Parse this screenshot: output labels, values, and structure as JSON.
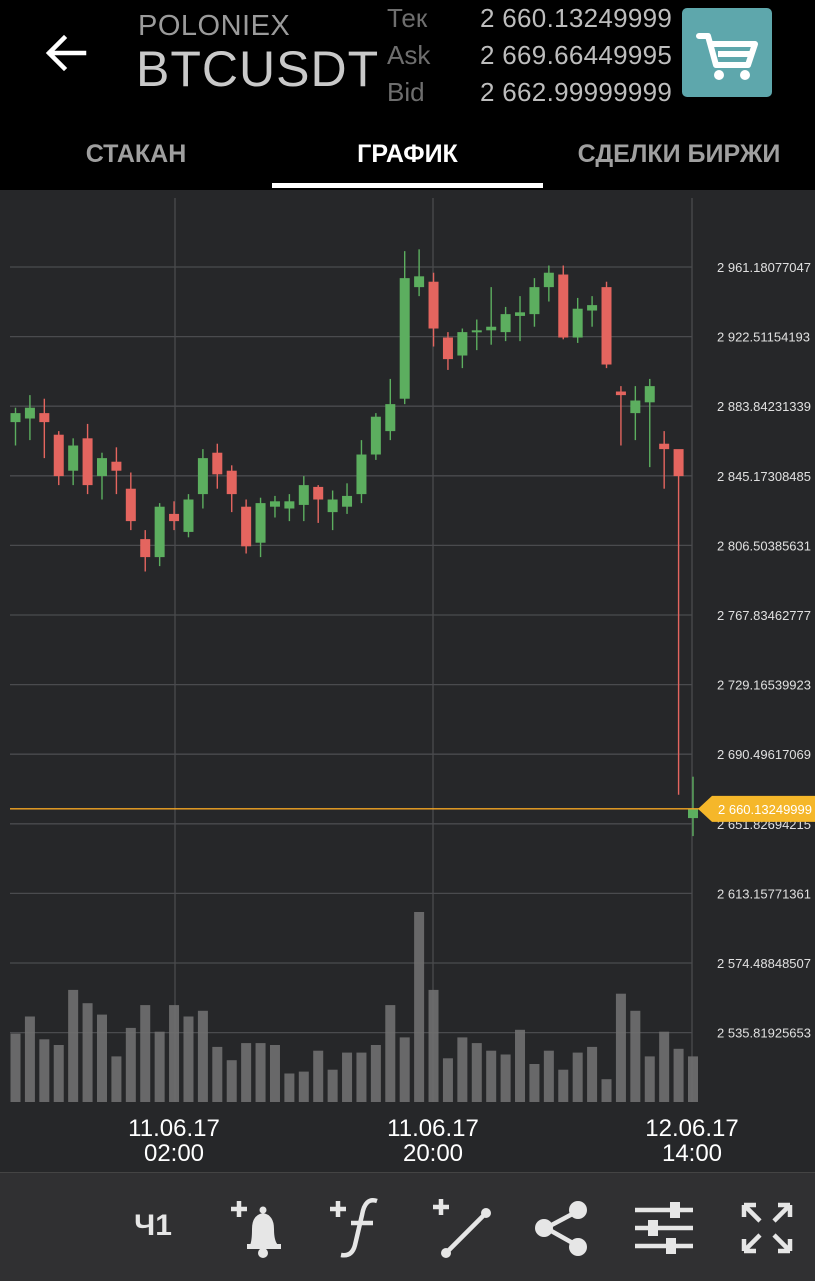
{
  "header": {
    "back_icon": "arrow-left-icon",
    "exchange": "POLONIEX",
    "pair": "BTCUSDT",
    "quotes": [
      {
        "label": "Тек",
        "value": "2 660.13249999"
      },
      {
        "label": "Ask",
        "value": "2 669.66449995"
      },
      {
        "label": "Bid",
        "value": "2 662.99999999"
      }
    ],
    "cart_icon": "shopping-cart-icon",
    "cart_color": "#5ea7ac"
  },
  "tabs": [
    {
      "label": "СТАКАН",
      "active": false
    },
    {
      "label": "ГРАФИК",
      "active": true
    },
    {
      "label": "СДЕЛКИ БИРЖИ",
      "active": false
    }
  ],
  "chart_data": {
    "type": "candlestick",
    "price_axis_ticks": [
      "2 961.18077047",
      "2 922.51154193",
      "2 883.84231339",
      "2 845.17308485",
      "2 806.50385631",
      "2 767.83462777",
      "2 729.16539923",
      "2 690.49617069",
      "2 651.82694215",
      "2 613.15771361",
      "2 574.48848507",
      "2 535.81925653"
    ],
    "current_price_label": "2 660.13249999",
    "current_price": 2660.13,
    "x_tick_labels": [
      [
        "11.06.17",
        "02:00"
      ],
      [
        "11.06.17",
        "20:00"
      ],
      [
        "12.06.17",
        "14:00"
      ]
    ],
    "colors": {
      "up": "#5cae5f",
      "down": "#e4655f",
      "current_line": "#f5a623",
      "volume": "#707070"
    },
    "candles": [
      [
        2875,
        2880,
        2866,
        2862,
        2883
      ],
      [
        2877,
        2883,
        2874,
        2865,
        2890
      ],
      [
        2880,
        2875,
        2872,
        2855,
        2888
      ],
      [
        2868,
        2845,
        2843,
        2840,
        2870
      ],
      [
        2848,
        2862,
        2845,
        2840,
        2866
      ],
      [
        2866,
        2840,
        2837,
        2835,
        2874
      ],
      [
        2845,
        2855,
        2842,
        2832,
        2858
      ],
      [
        2853,
        2848,
        2838,
        2835,
        2861
      ],
      [
        2838,
        2820,
        2817,
        2815,
        2847
      ],
      [
        2810,
        2800,
        2795,
        2792,
        2815
      ],
      [
        2800,
        2828,
        2798,
        2795,
        2830
      ],
      [
        2824,
        2820,
        2818,
        2815,
        2831
      ],
      [
        2814,
        2832,
        2811,
        2811,
        2835
      ],
      [
        2835,
        2855,
        2830,
        2827,
        2860
      ],
      [
        2858,
        2846,
        2841,
        2838,
        2863
      ],
      [
        2848,
        2835,
        2830,
        2825,
        2851
      ],
      [
        2828,
        2806,
        2804,
        2802,
        2832
      ],
      [
        2808,
        2830,
        2804,
        2800,
        2833
      ],
      [
        2828,
        2831,
        2824,
        2822,
        2834
      ],
      [
        2827,
        2831,
        2823,
        2820,
        2835
      ],
      [
        2829,
        2840,
        2824,
        2820,
        2845
      ],
      [
        2839,
        2832,
        2819,
        2819,
        2840
      ],
      [
        2825,
        2832,
        2822,
        2815,
        2837
      ],
      [
        2828,
        2834,
        2825,
        2824,
        2841
      ],
      [
        2835,
        2857,
        2830,
        2830,
        2865
      ],
      [
        2857,
        2878,
        2855,
        2854,
        2880
      ],
      [
        2870,
        2885,
        2868,
        2865,
        2899
      ],
      [
        2888,
        2955,
        2886,
        2885,
        2970
      ],
      [
        2950,
        2956,
        2948,
        2945,
        2971
      ],
      [
        2953,
        2927,
        2925,
        2917,
        2958
      ],
      [
        2922,
        2910,
        2906,
        2904,
        2925
      ],
      [
        2912,
        2925,
        2910,
        2905,
        2927
      ],
      [
        2925,
        2926,
        2919,
        2915,
        2932
      ],
      [
        2926,
        2928,
        2922,
        2918,
        2950
      ],
      [
        2925,
        2935,
        2920,
        2920,
        2939
      ],
      [
        2934,
        2936,
        2929,
        2920,
        2945
      ],
      [
        2935,
        2950,
        2928,
        2928,
        2955
      ],
      [
        2950,
        2958,
        2945,
        2942,
        2962
      ],
      [
        2957,
        2922,
        2921,
        2921,
        2962
      ],
      [
        2922,
        2938,
        2920,
        2919,
        2944
      ],
      [
        2937,
        2940,
        2932,
        2928,
        2945
      ],
      [
        2950,
        2907,
        2905,
        2905,
        2953
      ],
      [
        2892,
        2890,
        2870,
        2862,
        2895
      ],
      [
        2880,
        2887,
        2873,
        2865,
        2895
      ],
      [
        2886,
        2895,
        2880,
        2850,
        2899
      ],
      [
        2863,
        2860,
        2848,
        2838,
        2870
      ],
      [
        2860,
        2845,
        2668,
        2668,
        2850
      ],
      [
        2655,
        2660,
        2649,
        2645,
        2678
      ]
    ],
    "volume": [
      36,
      45,
      33,
      30,
      59,
      52,
      46,
      24,
      39,
      51,
      37,
      51,
      45,
      48,
      29,
      22,
      31,
      31,
      30,
      15,
      16,
      27,
      17,
      26,
      26,
      30,
      51,
      34,
      100,
      59,
      23,
      34,
      31,
      27,
      25,
      38,
      20,
      27,
      17,
      26,
      29,
      12,
      57,
      48,
      24,
      37,
      28,
      24
    ]
  },
  "toolbar": {
    "timeframe_label": "Ч1",
    "icons": [
      "add-alert-bell-icon",
      "add-indicator-icon",
      "add-trendline-icon",
      "share-icon",
      "settings-sliders-icon",
      "fullscreen-icon"
    ]
  }
}
